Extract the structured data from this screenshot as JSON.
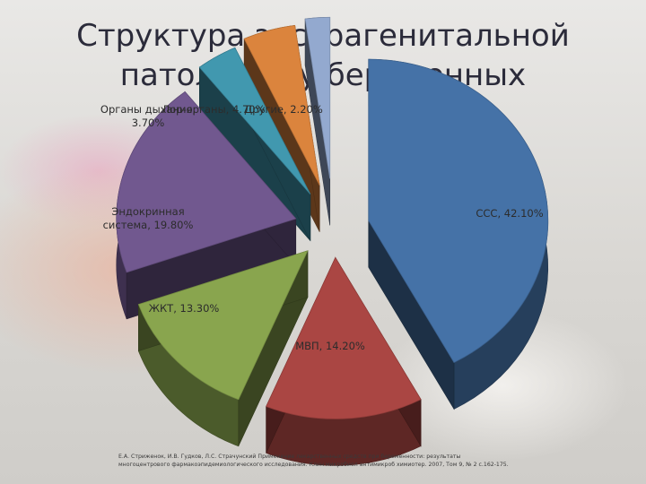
{
  "chart_data": {
    "type": "pie",
    "title": "Структура экстрагенитальной патологии у беременных",
    "categories": [
      "ССС",
      "МВП",
      "ЖКТ",
      "Эндокринная система",
      "Органы дыхания",
      "Лор-органы",
      "Другие"
    ],
    "values": [
      42.1,
      14.2,
      13.3,
      19.8,
      3.7,
      4.7,
      2.2
    ],
    "labels": [
      "ССС, 42.10%",
      "МВП, 14.20%",
      "ЖКТ, 13.30%",
      "Эндокринная система, 19.80%",
      "Органы дыхания, 3.70%",
      "Лор-органы, 4.70%",
      "Другие, 2.20%"
    ],
    "colors": [
      "#4572a7",
      "#aa4643",
      "#89a54e",
      "#71588f",
      "#4198af",
      "#db843d",
      "#93a9cf"
    ],
    "legend": "none"
  },
  "title_line1": "Структура экстрагенитальной",
  "title_line2": "патологии у беременных",
  "source_note": "Е.А. Стриженок, И.В. Гудков, Л.С. Страчунский Применение лекарственных средств при беременности: результаты многоцентрового фармакоэпидемиологического исследования. Клин микробиол антимикроб химиотер. 2007, Том 9, № 2 с.162-175."
}
